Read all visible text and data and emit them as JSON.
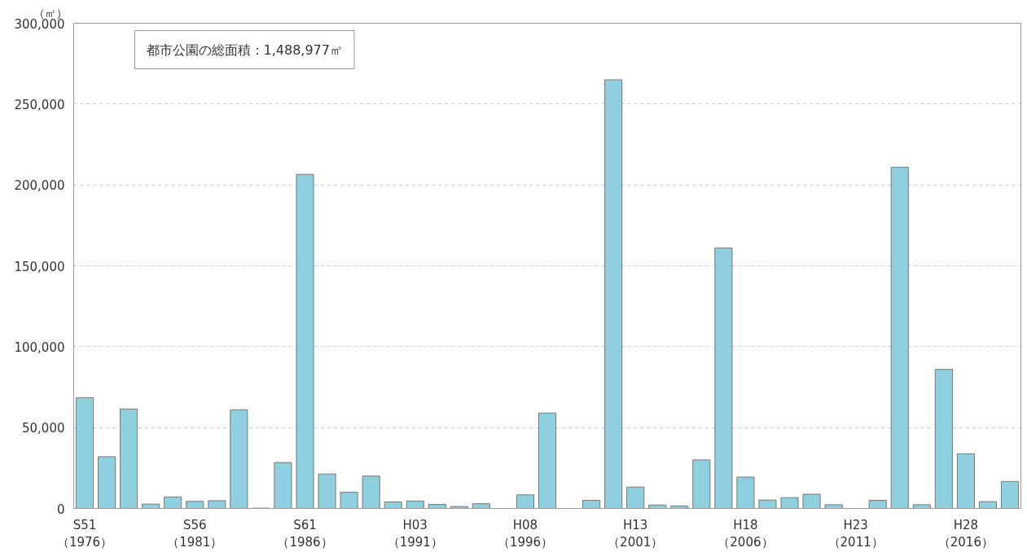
{
  "chart_data": {
    "type": "bar",
    "ylabel": "（㎡）",
    "annotations": [
      "都市公園の総面積：1,488,977㎡"
    ],
    "categories": [
      "S51\n（1976）",
      null,
      null,
      null,
      null,
      "S56\n（1981）",
      null,
      null,
      null,
      null,
      "S61\n（1986）",
      null,
      null,
      null,
      null,
      "H03\n（1991）",
      null,
      null,
      null,
      null,
      "H08\n（1996）",
      null,
      null,
      null,
      null,
      "H13\n（2001）",
      null,
      null,
      null,
      null,
      "H18\n（2006）",
      null,
      null,
      null,
      null,
      "H23\n（2011）",
      null,
      null,
      null,
      null,
      "H28\n（2016）",
      null,
      null
    ],
    "values": [
      68500,
      32000,
      61500,
      2700,
      7100,
      4400,
      4800,
      61000,
      200,
      28400,
      206500,
      21300,
      10000,
      20000,
      4000,
      4600,
      2500,
      1200,
      2900,
      null,
      8400,
      59000,
      null,
      5000,
      265000,
      13200,
      2100,
      1500,
      30000,
      161000,
      19400,
      5200,
      6700,
      8800,
      2300,
      null,
      5000,
      211000,
      2300,
      86000,
      33800,
      4200,
      16700
    ],
    "color": "#8ecfe0",
    "ylim": [
      0,
      300000
    ],
    "yticks": [
      {
        "value": 0,
        "label": "0"
      },
      {
        "value": 50000,
        "label": "50,000"
      },
      {
        "value": 100000,
        "label": "100,000"
      },
      {
        "value": 150000,
        "label": "150,000"
      },
      {
        "value": 200000,
        "label": "200,000"
      },
      {
        "value": 250000,
        "label": "250,000"
      },
      {
        "value": 300000,
        "label": "300,000"
      }
    ],
    "grid": "y"
  }
}
